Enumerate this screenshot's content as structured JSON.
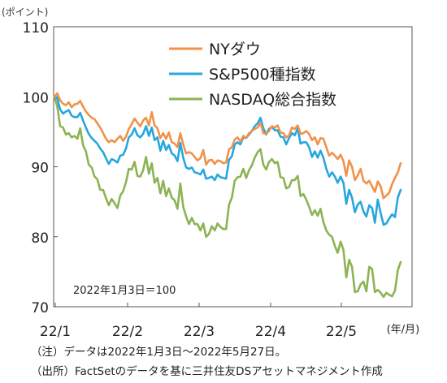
{
  "chart_data": {
    "type": "line",
    "ylabel_unit": "(ポイント)",
    "xlabel_unit": "(年/月)",
    "ylim": [
      70,
      110
    ],
    "yticks": [
      70,
      80,
      90,
      100,
      110
    ],
    "xticks": [
      "22/1",
      "22/2",
      "22/3",
      "22/4",
      "22/5"
    ],
    "grid": false,
    "legend_position": "top-right",
    "base_note": "2022年1月3日＝100",
    "series": [
      {
        "name": "NYダウ",
        "color": "#f0924a",
        "values": [
          100,
          100.5,
          99.5,
          99,
          98.8,
          99.2,
          98.5,
          98.9,
          99,
          99.4,
          98.6,
          97.9,
          97.4,
          97,
          96.8,
          96.2,
          95.6,
          94.8,
          94,
          93.5,
          93.8,
          93.5,
          94,
          94.4,
          93.7,
          94.3,
          95.4,
          96.1,
          96.9,
          96.3,
          95.8,
          96.6,
          97,
          95.9,
          97.8,
          95.9,
          95.5,
          94.1,
          94.8,
          94,
          94.9,
          93.5,
          93.3,
          92.8,
          94.8,
          93.2,
          91.9,
          92.1,
          91.9,
          91.4,
          90.9,
          91.2,
          92.4,
          90.3,
          90.9,
          91,
          90.4,
          90.9,
          90.8,
          90.5,
          90.6,
          92.5,
          92.8,
          93.9,
          94.2,
          93.6,
          94.4,
          94.1,
          94.8,
          95.1,
          95.4,
          95.6,
          96.3,
          94.8,
          94.7,
          95.1,
          95.8,
          95.6,
          95.9,
          94.9,
          94.8,
          94.2,
          94.5,
          95.6,
          95.4,
          95.9,
          94.7,
          94.8,
          95.1,
          94.7,
          93.8,
          94.2,
          93.2,
          94.1,
          94,
          92.8,
          91.6,
          92,
          91.6,
          91.1,
          91.7,
          90.8,
          88.7,
          90.9,
          90,
          88.1,
          88.8,
          89.7,
          88,
          87.6,
          88,
          87.2,
          86.4,
          87.9,
          87.2,
          85.5,
          85.9,
          86.3,
          87.5,
          88.4,
          89.2,
          90.5
        ]
      },
      {
        "name": "S&P500種指数",
        "color": "#27a7de",
        "values": [
          100,
          99.8,
          98.2,
          97.6,
          97.9,
          98.1,
          97.3,
          97.1,
          97.1,
          97.7,
          96.6,
          95.6,
          94.7,
          94.1,
          93.7,
          93.3,
          92.6,
          92.1,
          91.2,
          90.4,
          91.1,
          90.9,
          90.6,
          91.6,
          91.7,
          92.6,
          94.2,
          94.6,
          95.5,
          94.5,
          94.2,
          94.7,
          95.8,
          94.4,
          95.6,
          93.8,
          94.2,
          92.3,
          93.7,
          92.4,
          93.1,
          91.9,
          91.6,
          90.8,
          93.4,
          91.3,
          89.9,
          89.7,
          89.9,
          89.2,
          89.1,
          88.9,
          89.6,
          88.3,
          88.4,
          88.6,
          88.1,
          88.9,
          88.5,
          88.4,
          88.3,
          91,
          91.5,
          93.2,
          93.5,
          93.2,
          94.2,
          94.1,
          94.6,
          95.1,
          95.8,
          96.2,
          97,
          95.5,
          94.6,
          95.4,
          95.7,
          95.2,
          95.2,
          94.3,
          94.2,
          93.2,
          94.1,
          94.8,
          94.5,
          95.5,
          93.3,
          93.5,
          93.5,
          92.8,
          91.4,
          92.2,
          91.3,
          92.3,
          91.3,
          89.7,
          88.6,
          89.2,
          88.6,
          87.7,
          88.6,
          87.7,
          84.7,
          86.7,
          85.6,
          83.5,
          84.6,
          85,
          83.6,
          82.9,
          84.5,
          84.1,
          82,
          85.3,
          83.4,
          81.7,
          81.9,
          82.6,
          83.2,
          82.8,
          85.6,
          86.7
        ]
      },
      {
        "name": "NASDAQ総合指数",
        "color": "#8cb354",
        "values": [
          100,
          98.6,
          95.8,
          95.6,
          94.6,
          94.8,
          94.2,
          94.4,
          94,
          95.5,
          93.1,
          92.2,
          90.3,
          89.9,
          88.6,
          88.2,
          86.7,
          86.7,
          85.5,
          84.5,
          85.4,
          84.8,
          84.1,
          85.9,
          86.5,
          87.8,
          89.7,
          89.6,
          90.7,
          88.7,
          88.6,
          89.5,
          91.4,
          89,
          90.5,
          87.7,
          88.4,
          86.2,
          88,
          85.8,
          86.9,
          85.6,
          85.2,
          84,
          87.6,
          84.3,
          82.9,
          81.8,
          82.7,
          81.8,
          81.8,
          80.9,
          81.9,
          80,
          80.4,
          81.5,
          80.9,
          81.9,
          81.4,
          81.1,
          81.1,
          84.6,
          85.6,
          88,
          88.5,
          88.6,
          89.7,
          88.4,
          89.5,
          90.2,
          91.3,
          92.1,
          92.5,
          90.3,
          89.6,
          90.7,
          91.1,
          90.5,
          90.7,
          88.5,
          88.4,
          86.9,
          87.1,
          88.1,
          88.1,
          88.7,
          85.8,
          86.1,
          85.3,
          84.3,
          83.1,
          83.8,
          83,
          84,
          82.1,
          80.9,
          80.3,
          80,
          78.7,
          77.7,
          79.3,
          78.1,
          74.2,
          76.7,
          75.7,
          72.1,
          72.2,
          73.2,
          73.6,
          72.2,
          75.7,
          75.4,
          72.1,
          72.4,
          72,
          71.4,
          72,
          71.7,
          71.5,
          72.3,
          75.2,
          76.4
        ]
      }
    ]
  },
  "notes": {
    "note1": "（注）データは2022年1月3日～2022年5月27日。",
    "note2": "（出所）FactSetのデータを基に三井住友DSアセットマネジメント作成"
  }
}
